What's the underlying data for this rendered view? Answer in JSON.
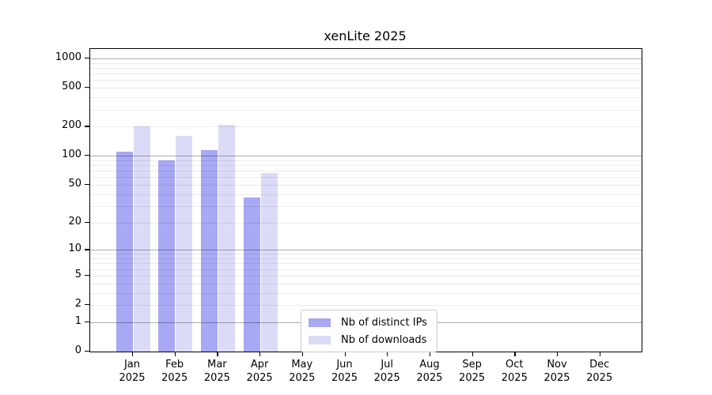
{
  "chart_data": {
    "type": "bar",
    "title": "xenLite 2025",
    "categories": [
      "Jan 2025",
      "Feb 2025",
      "Mar 2025",
      "Apr 2025",
      "May 2025",
      "Jun 2025",
      "Jul 2025",
      "Aug 2025",
      "Sep 2025",
      "Oct 2025",
      "Nov 2025",
      "Dec 2025"
    ],
    "series": [
      {
        "name": "Nb of distinct IPs",
        "color": "#a8a8f4",
        "values": [
          110,
          90,
          115,
          37,
          0,
          0,
          0,
          0,
          0,
          0,
          0,
          0
        ]
      },
      {
        "name": "Nb of downloads",
        "color": "#dbdbf8",
        "values": [
          200,
          160,
          210,
          66,
          0,
          0,
          0,
          0,
          0,
          0,
          0,
          0
        ]
      }
    ],
    "yscale": "log10(value+1)",
    "yticks": [
      0,
      1,
      2,
      5,
      10,
      20,
      50,
      100,
      200,
      500,
      1000
    ],
    "ylim": [
      0,
      1100
    ],
    "xlabel": "",
    "ylabel": "",
    "grid": true,
    "grid_major_at": [
      1,
      10,
      100,
      1000
    ],
    "legend_position": "inside lower-center"
  }
}
